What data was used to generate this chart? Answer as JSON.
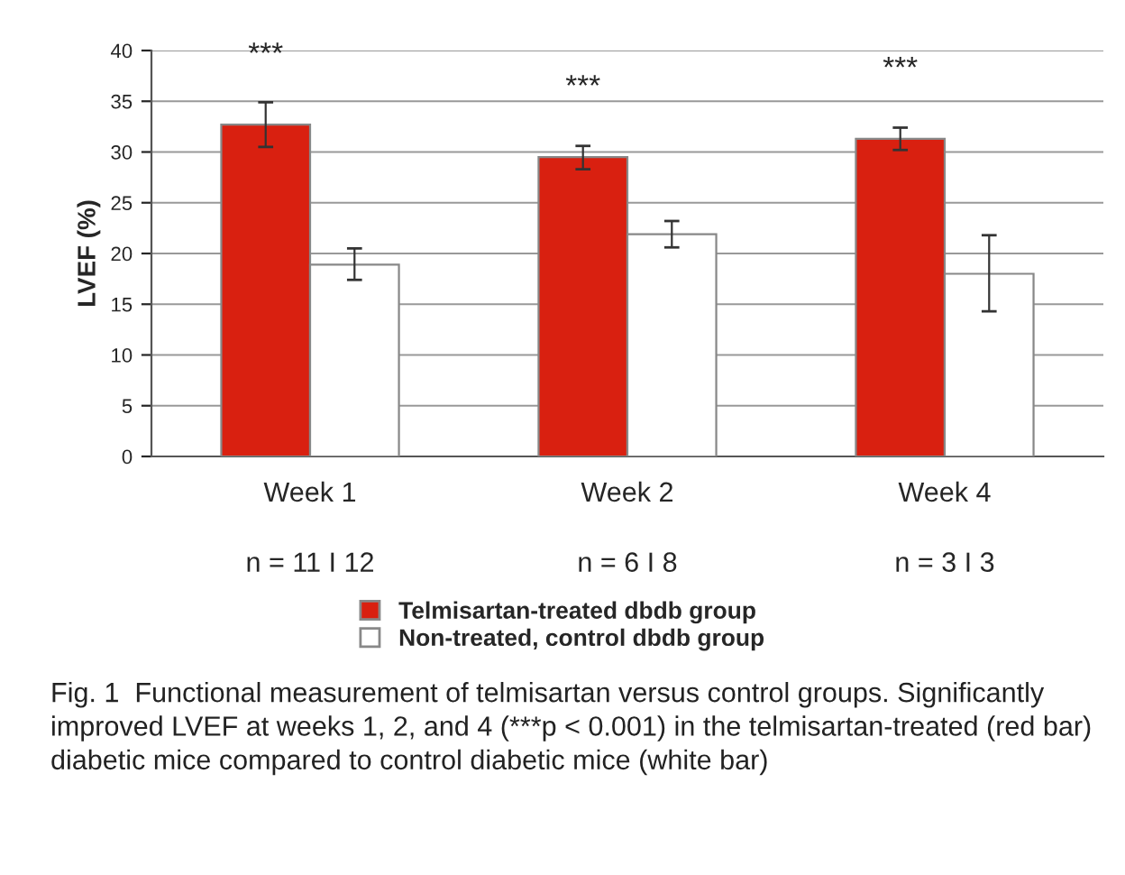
{
  "chart_data": {
    "type": "bar",
    "ylabel": "LVEF (%)",
    "categories": [
      "Week 1",
      "Week 2",
      "Week 4"
    ],
    "series": [
      {
        "name": "Telmisartan-treated dbdb group",
        "color": "#d92010",
        "values": [
          32.7,
          29.5,
          31.3
        ],
        "errors": [
          [
            30.5,
            34.9
          ],
          [
            28.3,
            30.6
          ],
          [
            30.2,
            32.4
          ]
        ]
      },
      {
        "name": "Non-treated, control dbdb group",
        "color": "#ffffff",
        "values": [
          18.9,
          21.9,
          18.0
        ],
        "errors": [
          [
            17.4,
            20.5
          ],
          [
            20.6,
            23.2
          ],
          [
            14.3,
            21.8
          ]
        ]
      }
    ],
    "ylim": [
      0,
      40
    ],
    "yticks": [
      0,
      5,
      10,
      15,
      20,
      25,
      30,
      35,
      40
    ],
    "grid": "y",
    "legend": "bottom",
    "annotations": [
      {
        "text": "***",
        "x": "Week 1",
        "y": 32.7
      },
      {
        "text": "***",
        "x": "Week 2",
        "y": 29.5
      },
      {
        "text": "***",
        "x": "Week 4",
        "y": 31.3
      },
      "n = 11 I 12",
      "n = 6 I 8",
      "n = 3 I 3",
      "Fig. 1  Functional measurement of telmisartan versus control groups. Significantly improved LVEF at weeks 1, 2, and 4 (***p < 0.001) in the telmisartan-treated (red bar) diabetic mice compared to control diabetic mice (white bar)"
    ]
  }
}
